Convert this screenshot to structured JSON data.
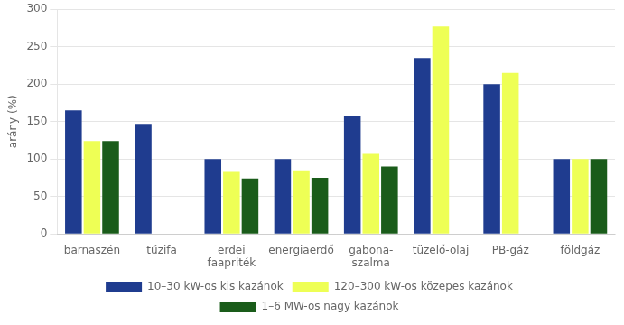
{
  "chart_data": {
    "type": "bar",
    "categories": [
      "barnaszén",
      "tűzifa",
      "erdei\nfaapriték",
      "energiaerdő",
      "gabona-\nszalma",
      "tüzelő-olaj",
      "PB-gáz",
      "földgáz"
    ],
    "series": [
      {
        "name": "10–30 kW-os kis kazánok",
        "color": "#1F3C8F",
        "values": [
          165,
          147,
          100,
          100,
          158,
          235,
          200,
          100
        ]
      },
      {
        "name": "120–300 kW-os közepes kazánok",
        "color": "#EEFF55",
        "values": [
          124,
          0,
          84,
          85,
          107,
          277,
          215,
          100
        ]
      },
      {
        "name": "1–6 MW-os nagy kazánok",
        "color": "#1A5C1A",
        "values": [
          124,
          0,
          74,
          75,
          90,
          0,
          0,
          100
        ]
      }
    ],
    "ylabel": "arány (%)",
    "ylim": [
      0,
      300
    ],
    "yticks": [
      0,
      50,
      100,
      150,
      200,
      250,
      300
    ],
    "grid": true,
    "legend": "bottom"
  }
}
